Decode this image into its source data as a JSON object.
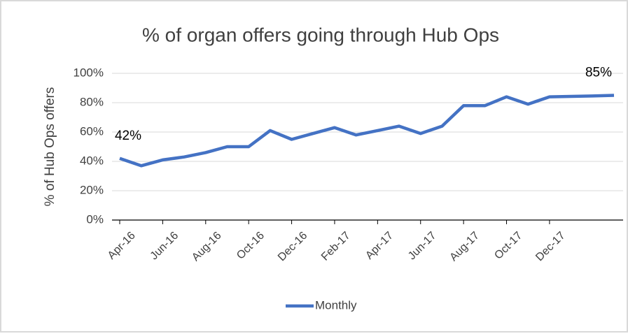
{
  "chart_data": {
    "type": "line",
    "title": "% of organ offers going through Hub Ops",
    "y_axis_label": "% of Hub Ops offers",
    "categories": [
      "Apr-16",
      null,
      "Jun-16",
      null,
      "Aug-16",
      null,
      "Oct-16",
      null,
      "Dec-16",
      null,
      "Feb-17",
      null,
      "Apr-17",
      null,
      "Jun-17",
      null,
      "Aug-17",
      null,
      "Oct-17",
      null,
      "Dec-17",
      null,
      null,
      null
    ],
    "series": [
      {
        "name": "Monthly",
        "color": "#4472c4",
        "values": [
          42,
          37,
          41,
          43,
          46,
          50,
          50,
          61,
          55,
          59,
          63,
          58,
          61,
          64,
          59,
          64,
          78,
          78,
          84,
          79,
          84,
          84.3,
          84.6,
          85
        ],
        "value_labels": [
          "42%",
          null,
          null,
          null,
          null,
          null,
          null,
          null,
          null,
          null,
          null,
          null,
          null,
          null,
          null,
          null,
          null,
          null,
          null,
          null,
          null,
          null,
          null,
          "85%"
        ]
      }
    ],
    "ylim": [
      0,
      100
    ],
    "yticks": [
      {
        "value": 0,
        "label": "0%"
      },
      {
        "value": 20,
        "label": "20%"
      },
      {
        "value": 40,
        "label": "40%"
      },
      {
        "value": 60,
        "label": "60%"
      },
      {
        "value": 80,
        "label": "80%"
      },
      {
        "value": 100,
        "label": "100%"
      }
    ],
    "grid": true,
    "legend": "bottom"
  }
}
